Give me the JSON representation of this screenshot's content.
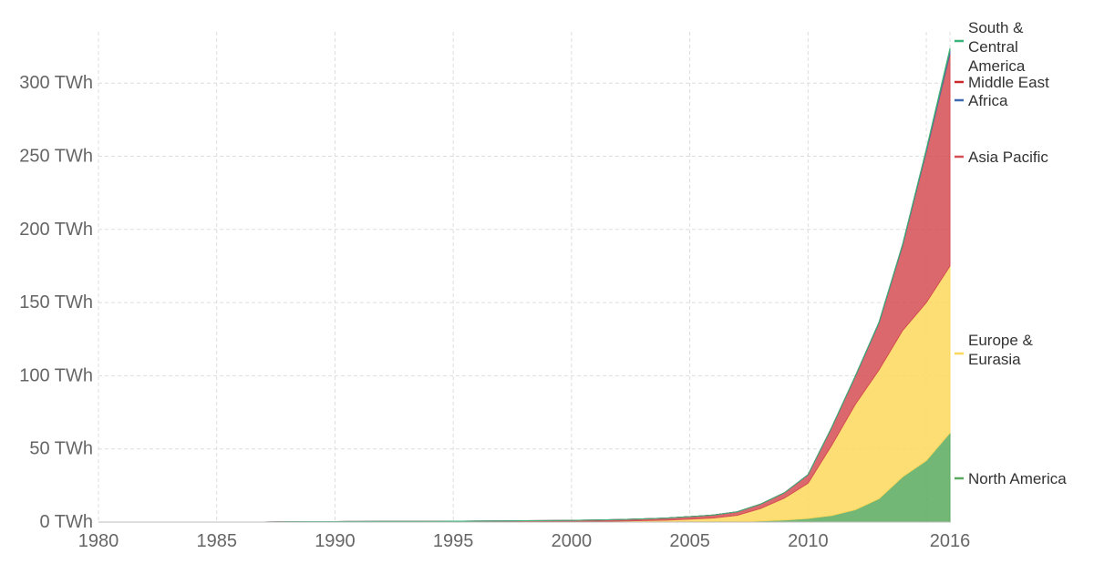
{
  "chart_data": {
    "type": "area",
    "stacked": true,
    "unit_suffix": " TWh",
    "x": [
      1980,
      1981,
      1982,
      1983,
      1984,
      1985,
      1986,
      1987,
      1988,
      1989,
      1990,
      1991,
      1992,
      1993,
      1994,
      1995,
      1996,
      1997,
      1998,
      1999,
      2000,
      2001,
      2002,
      2003,
      2004,
      2005,
      2006,
      2007,
      2008,
      2009,
      2010,
      2011,
      2012,
      2013,
      2014,
      2015,
      2016
    ],
    "xlim": [
      1980,
      2016
    ],
    "ylim": [
      0,
      335
    ],
    "x_ticks": [
      1980,
      1985,
      1990,
      1995,
      2000,
      2005,
      2010,
      2016
    ],
    "y_ticks": [
      0,
      50,
      100,
      150,
      200,
      250,
      300
    ],
    "grid": true,
    "series": [
      {
        "name": "North America",
        "color": "#5aaa5e",
        "values": [
          0,
          0,
          0,
          0,
          0,
          0,
          0,
          0,
          0,
          0,
          0,
          0,
          0,
          0,
          0,
          0,
          0,
          0,
          0,
          0,
          0,
          0,
          0,
          0,
          0,
          0.1,
          0.2,
          0.3,
          0.8,
          1.4,
          2.5,
          4.5,
          8.5,
          16,
          31,
          42,
          61
        ]
      },
      {
        "name": "Europe & Eurasia",
        "color": "#fdd85d",
        "values": [
          0,
          0,
          0,
          0,
          0,
          0,
          0,
          0,
          0,
          0,
          0,
          0,
          0.1,
          0.1,
          0.1,
          0.1,
          0.2,
          0.2,
          0.3,
          0.3,
          0.4,
          0.5,
          0.7,
          1.0,
          1.3,
          1.9,
          2.6,
          4.3,
          8.5,
          15,
          24,
          48,
          72,
          88,
          100,
          108,
          114
        ]
      },
      {
        "name": "Asia Pacific",
        "color": "#d54e53",
        "values": [
          0,
          0,
          0,
          0,
          0,
          0,
          0,
          0,
          0.2,
          0.3,
          0.3,
          0.4,
          0.4,
          0.4,
          0.4,
          0.5,
          0.5,
          0.6,
          0.6,
          0.7,
          0.8,
          0.9,
          1.0,
          1.2,
          1.4,
          1.7,
          2.0,
          2.4,
          3.0,
          3.6,
          5.8,
          12,
          19,
          32,
          58,
          103,
          145
        ]
      },
      {
        "name": "Africa",
        "color": "#3c6bb3",
        "values": [
          0,
          0,
          0,
          0,
          0,
          0,
          0,
          0,
          0,
          0,
          0,
          0,
          0,
          0,
          0,
          0,
          0,
          0,
          0,
          0,
          0,
          0,
          0,
          0,
          0,
          0,
          0,
          0,
          0,
          0,
          0.1,
          0.2,
          0.3,
          0.5,
          0.7,
          1.2,
          2.2
        ]
      },
      {
        "name": "Middle East",
        "color": "#c92a2a",
        "values": [
          0,
          0,
          0,
          0,
          0,
          0,
          0,
          0,
          0,
          0,
          0,
          0,
          0,
          0,
          0,
          0,
          0,
          0,
          0,
          0,
          0,
          0,
          0,
          0,
          0,
          0,
          0,
          0,
          0,
          0,
          0,
          0,
          0,
          0,
          0.1,
          0.2,
          0.4
        ]
      },
      {
        "name": "South & Central America",
        "color": "#3ab57a",
        "values": [
          0,
          0,
          0,
          0,
          0,
          0,
          0,
          0,
          0,
          0,
          0,
          0,
          0,
          0,
          0,
          0,
          0,
          0,
          0,
          0,
          0,
          0,
          0,
          0,
          0,
          0,
          0,
          0,
          0,
          0,
          0,
          0,
          0.1,
          0.1,
          0.2,
          0.5,
          1.2
        ]
      }
    ],
    "legend": {
      "placement": "right-inline",
      "entries": [
        {
          "series": "South & Central America",
          "lines": [
            "South &",
            "Central",
            "America"
          ]
        },
        {
          "series": "Middle East",
          "lines": [
            "Middle East"
          ]
        },
        {
          "series": "Africa",
          "lines": [
            "Africa"
          ]
        },
        {
          "series": "Asia Pacific",
          "lines": [
            "Asia Pacific"
          ]
        },
        {
          "series": "Europe & Eurasia",
          "lines": [
            "Europe &",
            "Eurasia"
          ]
        },
        {
          "series": "North America",
          "lines": [
            "North America"
          ]
        }
      ]
    }
  }
}
